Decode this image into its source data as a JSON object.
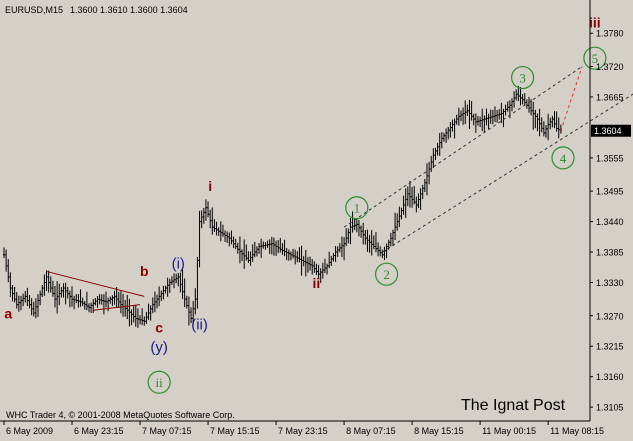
{
  "chart_data": {
    "type": "bar",
    "title": "EURUSD,M15",
    "ohlc": "1.3600 1.3610 1.3600 1.3604",
    "current_price": "1.3604",
    "ylim": [
      1.308,
      1.384
    ],
    "y_ticks": [
      "1.3780",
      "1.3720",
      "1.3665",
      "1.3604",
      "1.3555",
      "1.3495",
      "1.3440",
      "1.3385",
      "1.3330",
      "1.3270",
      "1.3215",
      "1.3160",
      "1.3105"
    ],
    "y_tick_values": [
      1.378,
      1.372,
      1.3665,
      1.3604,
      1.3555,
      1.3495,
      1.344,
      1.3385,
      1.333,
      1.327,
      1.3215,
      1.316,
      1.3105
    ],
    "x_ticks": [
      "6 May 2009",
      "6 May 23:15",
      "7 May 07:15",
      "7 May 15:15",
      "7 May 23:15",
      "8 May 07:15",
      "8 May 15:15",
      "11 May 00:15",
      "11 May 08:15"
    ],
    "x_tick_index": [
      0,
      32,
      64,
      96,
      128,
      160,
      192,
      224,
      256
    ],
    "bar_count": 272,
    "price_path": [
      [
        0,
        1.338
      ],
      [
        3,
        1.332
      ],
      [
        6,
        1.329
      ],
      [
        10,
        1.3305
      ],
      [
        14,
        1.3275
      ],
      [
        18,
        1.332
      ],
      [
        20,
        1.334
      ],
      [
        24,
        1.33
      ],
      [
        28,
        1.332
      ],
      [
        32,
        1.33
      ],
      [
        36,
        1.3295
      ],
      [
        40,
        1.3285
      ],
      [
        44,
        1.33
      ],
      [
        48,
        1.3295
      ],
      [
        52,
        1.3305
      ],
      [
        55,
        1.329
      ],
      [
        58,
        1.328
      ],
      [
        62,
        1.3265
      ],
      [
        66,
        1.326
      ],
      [
        70,
        1.329
      ],
      [
        74,
        1.331
      ],
      [
        78,
        1.333
      ],
      [
        82,
        1.334
      ],
      [
        85,
        1.33
      ],
      [
        88,
        1.3265
      ],
      [
        90,
        1.33
      ],
      [
        92,
        1.344
      ],
      [
        95,
        1.3465
      ],
      [
        98,
        1.343
      ],
      [
        102,
        1.342
      ],
      [
        106,
        1.341
      ],
      [
        110,
        1.339
      ],
      [
        115,
        1.337
      ],
      [
        120,
        1.3395
      ],
      [
        126,
        1.34
      ],
      [
        130,
        1.339
      ],
      [
        135,
        1.338
      ],
      [
        140,
        1.337
      ],
      [
        145,
        1.336
      ],
      [
        148,
        1.3345
      ],
      [
        152,
        1.336
      ],
      [
        156,
        1.3385
      ],
      [
        160,
        1.34
      ],
      [
        163,
        1.343
      ],
      [
        166,
        1.3435
      ],
      [
        170,
        1.341
      ],
      [
        174,
        1.3395
      ],
      [
        178,
        1.338
      ],
      [
        182,
        1.341
      ],
      [
        186,
        1.345
      ],
      [
        190,
        1.349
      ],
      [
        194,
        1.347
      ],
      [
        198,
        1.351
      ],
      [
        202,
        1.356
      ],
      [
        206,
        1.359
      ],
      [
        210,
        1.361
      ],
      [
        214,
        1.363
      ],
      [
        218,
        1.364
      ],
      [
        222,
        1.362
      ],
      [
        226,
        1.3625
      ],
      [
        230,
        1.363
      ],
      [
        234,
        1.3635
      ],
      [
        238,
        1.365
      ],
      [
        241,
        1.367
      ],
      [
        244,
        1.366
      ],
      [
        248,
        1.364
      ],
      [
        251,
        1.3625
      ],
      [
        254,
        1.36
      ],
      [
        256,
        1.3615
      ],
      [
        258,
        1.3625
      ],
      [
        260,
        1.3608
      ],
      [
        262,
        1.3604
      ]
    ],
    "lines": [
      {
        "name": "triangle-upper",
        "color": "#8b0000",
        "dashed": false,
        "from": [
          20,
          1.335
        ],
        "to": [
          66,
          1.3305
        ]
      },
      {
        "name": "triangle-lower",
        "color": "#8b0000",
        "dashed": false,
        "from": [
          42,
          1.328
        ],
        "to": [
          64,
          1.329
        ]
      },
      {
        "name": "channel-upper",
        "color": "#333333",
        "dashed": true,
        "from": [
          160,
          1.343
        ],
        "to": [
          272,
          1.372
        ]
      },
      {
        "name": "channel-lower",
        "color": "#333333",
        "dashed": true,
        "from": [
          178,
          1.3385
        ],
        "to": [
          300,
          1.368
        ]
      },
      {
        "name": "wave-5-projection",
        "color": "#e03030",
        "dashed": true,
        "from": [
          262,
          1.3604
        ],
        "to": [
          272,
          1.372
        ]
      }
    ],
    "annotations": [
      {
        "text": "a",
        "style": "plain",
        "color": "#8b0000",
        "x": 2,
        "y": 1.3265,
        "size": 14,
        "weight": "bold"
      },
      {
        "text": "b",
        "style": "plain",
        "color": "#8b0000",
        "x": 66,
        "y": 1.3342,
        "size": 14,
        "weight": "bold"
      },
      {
        "text": "c",
        "style": "plain",
        "color": "#8b0000",
        "x": 73,
        "y": 1.324,
        "size": 14,
        "weight": "bold"
      },
      {
        "text": "(y)",
        "style": "plain",
        "color": "#1a1a8b",
        "x": 73,
        "y": 1.3205,
        "size": 15,
        "weight": "normal"
      },
      {
        "text": "ii",
        "style": "circle",
        "color": "#2e8b2e",
        "x": 73,
        "y": 1.315,
        "size": 13,
        "weight": "normal"
      },
      {
        "text": "(i)",
        "style": "plain",
        "color": "#1a1a8b",
        "x": 82,
        "y": 1.3355,
        "size": 15,
        "weight": "normal"
      },
      {
        "text": "(ii)",
        "style": "plain",
        "color": "#1a1a8b",
        "x": 92,
        "y": 1.3245,
        "size": 15,
        "weight": "normal"
      },
      {
        "text": "i",
        "style": "plain",
        "color": "#8b0000",
        "x": 97,
        "y": 1.3495,
        "size": 14,
        "weight": "bold"
      },
      {
        "text": "ii",
        "style": "plain",
        "color": "#8b0000",
        "x": 147,
        "y": 1.332,
        "size": 14,
        "weight": "bold"
      },
      {
        "text": "1",
        "style": "circle",
        "color": "#2e8b2e",
        "x": 166,
        "y": 1.3465,
        "size": 13,
        "weight": "normal"
      },
      {
        "text": "2",
        "style": "circle",
        "color": "#2e8b2e",
        "x": 180,
        "y": 1.3345,
        "size": 13,
        "weight": "normal"
      },
      {
        "text": "3",
        "style": "circle",
        "color": "#2e8b2e",
        "x": 244,
        "y": 1.37,
        "size": 13,
        "weight": "normal"
      },
      {
        "text": "4",
        "style": "circle",
        "color": "#2e8b2e",
        "x": 263,
        "y": 1.3555,
        "size": 13,
        "weight": "normal"
      },
      {
        "text": "5",
        "style": "circle",
        "color": "#2e8b2e",
        "x": 278,
        "y": 1.3735,
        "size": 13,
        "weight": "normal"
      },
      {
        "text": "iii",
        "style": "plain",
        "color": "#8b0000",
        "x": 278,
        "y": 1.379,
        "size": 14,
        "weight": "bold"
      }
    ]
  },
  "footer": {
    "copyright": "WHC Trader 4, © 2001-2008 MetaQuotes Software Corp.",
    "watermark": "The Ignat Post"
  },
  "colors": {
    "background": "#d4d0c8",
    "bars": "#000000",
    "axis_text": "#000000",
    "price_tag_bg": "#000000",
    "price_tag_text": "#ffffff"
  }
}
